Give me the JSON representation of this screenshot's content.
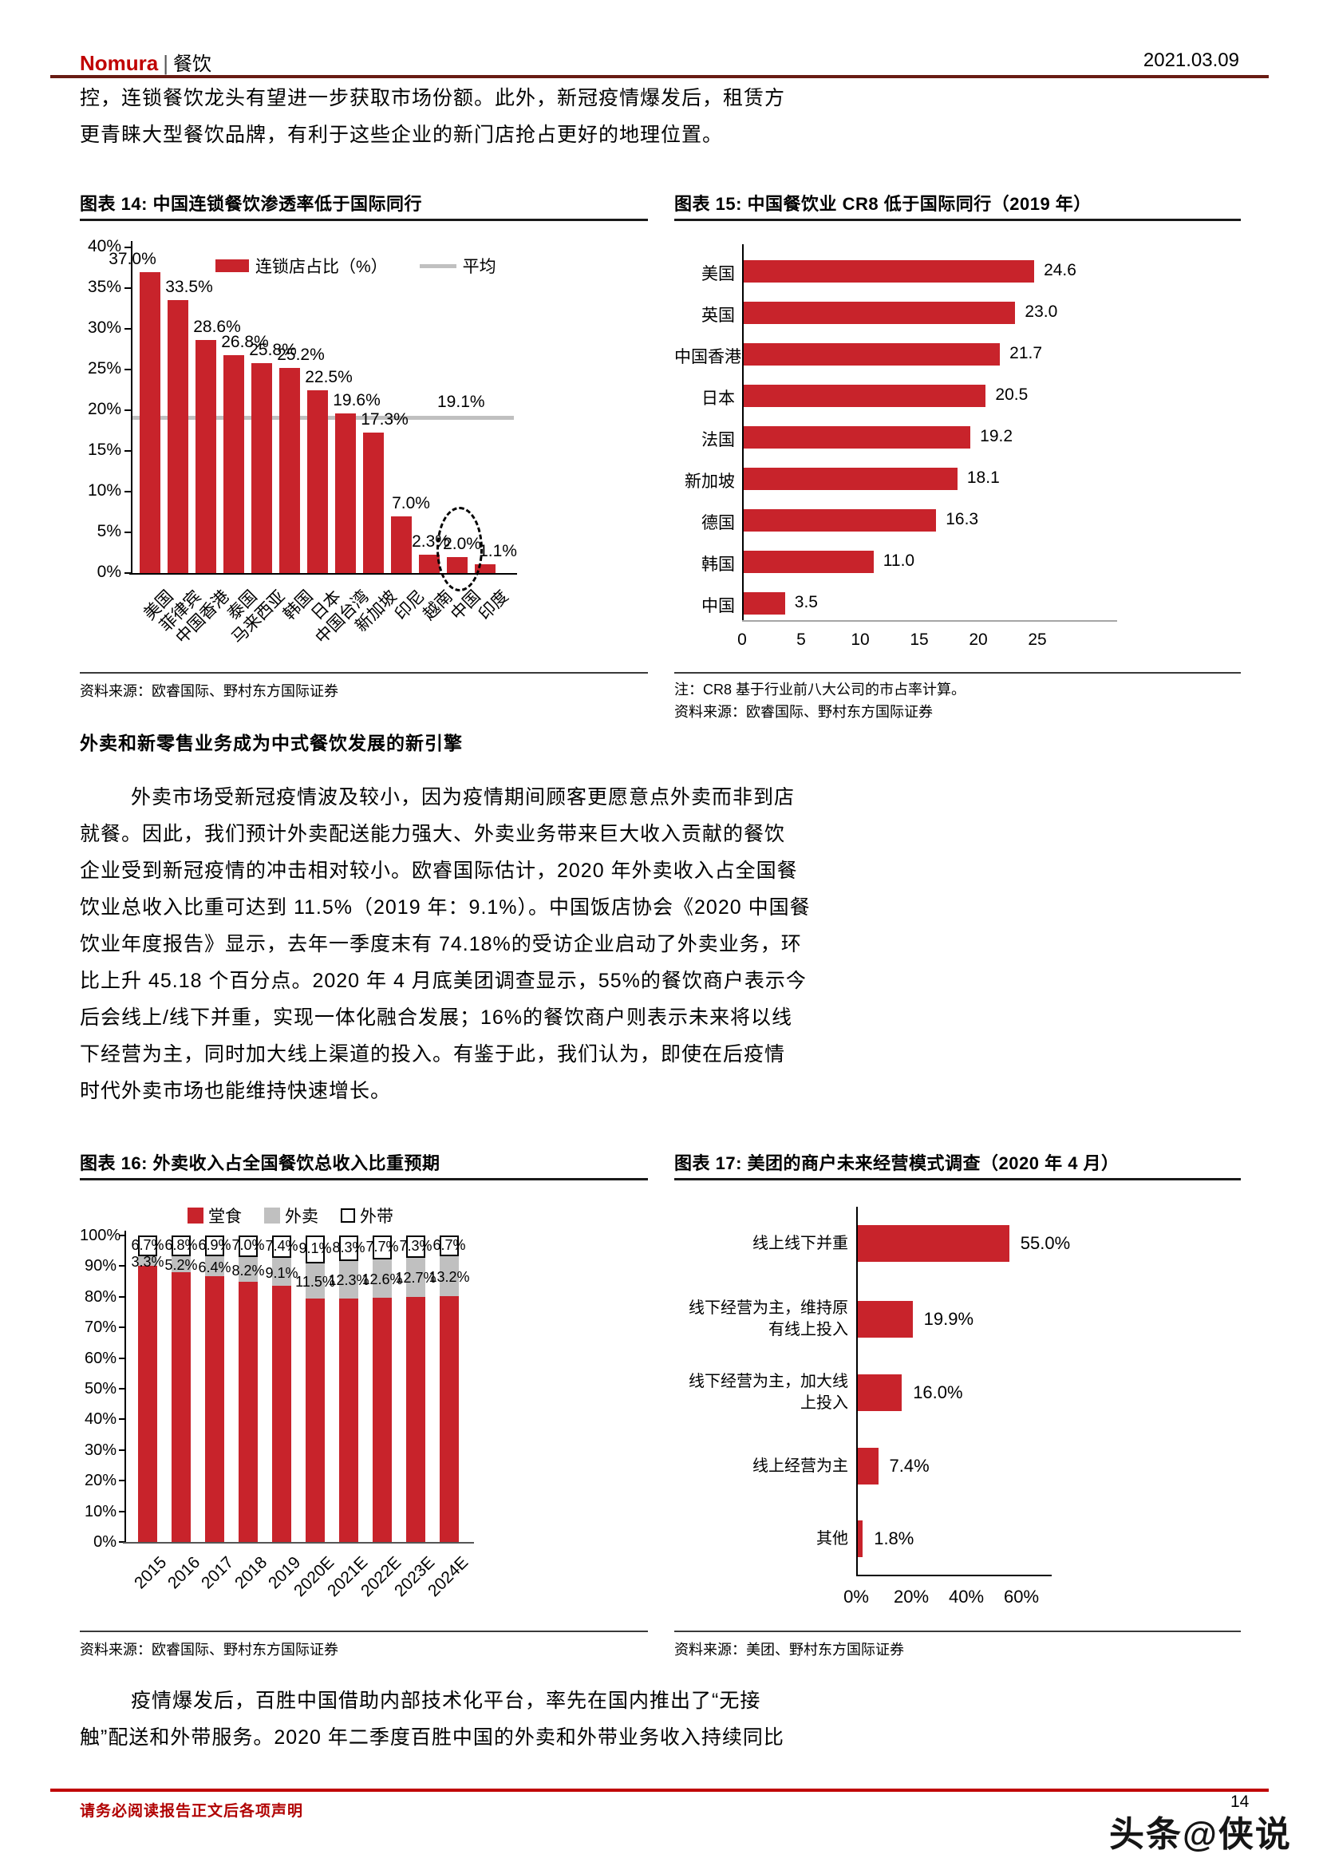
{
  "header": {
    "brand": "Nomura",
    "divider": "|",
    "section": "餐饮",
    "date": "2021.03.09"
  },
  "intro": {
    "lines": [
      "控，连锁餐饮龙头有望进一步获取市场份额。此外，新冠疫情爆发后，租赁方",
      "更青睐大型餐饮品牌，有利于这些企业的新门店抢占更好的地理位置。"
    ]
  },
  "section_heading": "外卖和新零售业务成为中式餐饮发展的新引擎",
  "body": {
    "lines": [
      "外卖市场受新冠疫情波及较小，因为疫情期间顾客更愿意点外卖而非到店",
      "就餐。因此，我们预计外卖配送能力强大、外卖业务带来巨大收入贡献的餐饮",
      "企业受到新冠疫情的冲击相对较小。欧睿国际估计，2020 年外卖收入占全国餐",
      "饮业总收入比重可达到 11.5%（2019 年：9.1%）。中国饭店协会《2020 中国餐",
      "饮业年度报告》显示，去年一季度末有 74.18%的受访企业启动了外卖业务，环",
      "比上升 45.18 个百分点。2020 年 4 月底美团调查显示，55%的餐饮商户表示今",
      "后会线上/线下并重，实现一体化融合发展；16%的餐饮商户则表示未来将以线",
      "下经营为主，同时加大线上渠道的投入。有鉴于此，我们认为，即使在后疫情",
      "时代外卖市场也能维持快速增长。"
    ]
  },
  "closing": {
    "lines": [
      "疫情爆发后，百胜中国借助内部技术化平台，率先在国内推出了“无接",
      "触”配送和外带服务。2020 年二季度百胜中国的外卖和外带业务收入持续同比"
    ]
  },
  "figures": {
    "fig14": {
      "title": "图表 14: 中国连锁餐饮渗透率低于国际同行",
      "source": "资料来源：欧睿国际、野村东方国际证券",
      "chart_data": {
        "type": "bar",
        "series_name": "连锁店占比（%）",
        "categories": [
          "美国",
          "菲律宾",
          "中国香港",
          "泰国",
          "马来西亚",
          "韩国",
          "日本",
          "中国台湾",
          "新加坡",
          "印尼",
          "越南",
          "中国",
          "印度"
        ],
        "values": [
          37.0,
          33.5,
          28.6,
          26.8,
          25.8,
          25.2,
          22.5,
          19.6,
          17.3,
          7.0,
          2.3,
          2.0,
          1.1
        ],
        "labels": [
          "37.0%",
          "33.5%",
          "28.6%",
          "26.8%",
          "25.8%",
          "25.2%",
          "22.5%",
          "19.6%",
          "17.3%",
          "7.0%",
          "2.3%",
          "2.0%",
          "1.1%"
        ],
        "average_line": {
          "label": "平均",
          "value": 19.1,
          "value_label": "19.1%"
        },
        "highlight_category": "中国",
        "ylim": [
          0,
          40
        ],
        "yticks": [
          "0%",
          "5%",
          "10%",
          "15%",
          "20%",
          "25%",
          "30%",
          "35%",
          "40%"
        ],
        "legend_position": "top"
      }
    },
    "fig15": {
      "title": "图表 15: 中国餐饮业 CR8 低于国际同行（2019 年）",
      "note": "注：CR8 基于行业前八大公司的市占率计算。",
      "source": "资料来源：欧睿国际、野村东方国际证券",
      "chart_data": {
        "type": "bar-horizontal",
        "categories": [
          "美国",
          "英国",
          "中国香港",
          "日本",
          "法国",
          "新加坡",
          "德国",
          "韩国",
          "中国"
        ],
        "values": [
          24.6,
          23.0,
          21.7,
          20.5,
          19.2,
          18.1,
          16.3,
          11.0,
          3.5
        ],
        "labels": [
          "24.6",
          "23.0",
          "21.7",
          "20.5",
          "19.2",
          "18.1",
          "16.3",
          "11.0",
          "3.5"
        ],
        "xlim": [
          0,
          25
        ],
        "xticks": [
          0,
          5,
          10,
          15,
          20,
          25
        ]
      }
    },
    "fig16": {
      "title": "图表 16: 外卖收入占全国餐饮总收入比重预期",
      "source": "资料来源：欧睿国际、野村东方国际证券",
      "chart_data": {
        "type": "stacked-bar-100",
        "categories": [
          "2015",
          "2016",
          "2017",
          "2018",
          "2019",
          "2020E",
          "2021E",
          "2022E",
          "2023E",
          "2024E"
        ],
        "series": [
          {
            "name": "堂食",
            "color_key": "red",
            "values": [
              90.0,
              88.0,
              86.7,
              84.8,
              83.5,
              79.4,
              79.4,
              79.7,
              80.0,
              80.1
            ]
          },
          {
            "name": "外卖",
            "color_key": "gray",
            "values": [
              3.3,
              5.2,
              6.4,
              8.2,
              9.1,
              11.5,
              12.3,
              12.6,
              12.7,
              13.2
            ],
            "labels": [
              "3.3%",
              "5.2%",
              "6.4%",
              "8.2%",
              "9.1%",
              "11.5%",
              "12.3%",
              "12.6%",
              "12.7%",
              "13.2%"
            ]
          },
          {
            "name": "外带",
            "color_key": "white-box",
            "values": [
              6.7,
              6.8,
              6.9,
              7.0,
              7.4,
              9.1,
              8.3,
              7.7,
              7.3,
              6.7
            ],
            "labels": [
              "6.7%",
              "6.8%",
              "6.9%",
              "7.0%",
              "7.4%",
              "9.1%",
              "8.3%",
              "7.7%",
              "7.3%",
              "6.7%"
            ]
          }
        ],
        "ylim": [
          0,
          100
        ],
        "yticks": [
          "0%",
          "10%",
          "20%",
          "30%",
          "40%",
          "50%",
          "60%",
          "70%",
          "80%",
          "90%",
          "100%"
        ],
        "legend_position": "top"
      }
    },
    "fig17": {
      "title": "图表 17: 美团的商户未来经营模式调查（2020 年 4 月）",
      "source": "资料来源：美团、野村东方国际证券",
      "chart_data": {
        "type": "bar-horizontal",
        "categories": [
          "线上线下并重",
          "线下经营为主，维持原有线上投入",
          "线下经营为主，加大线上投入",
          "线上经营为主",
          "其他"
        ],
        "values": [
          55.0,
          19.9,
          16.0,
          7.4,
          1.8
        ],
        "labels": [
          "55.0%",
          "19.9%",
          "16.0%",
          "7.4%",
          "1.8%"
        ],
        "xlim": [
          0,
          60
        ],
        "xticks": [
          "0%",
          "20%",
          "40%",
          "60%"
        ]
      }
    }
  },
  "footer": {
    "disclaimer": "请务必阅读报告正文后各项声明",
    "page_number": "14",
    "watermark": "头条@侠说"
  },
  "colors": {
    "bar_red": "#c8232b",
    "gray": "#c0c0c0",
    "axis_gray": "#a6a6a6",
    "header_rule": "#681b13",
    "footer_red": "#c00000",
    "black": "#000000"
  }
}
